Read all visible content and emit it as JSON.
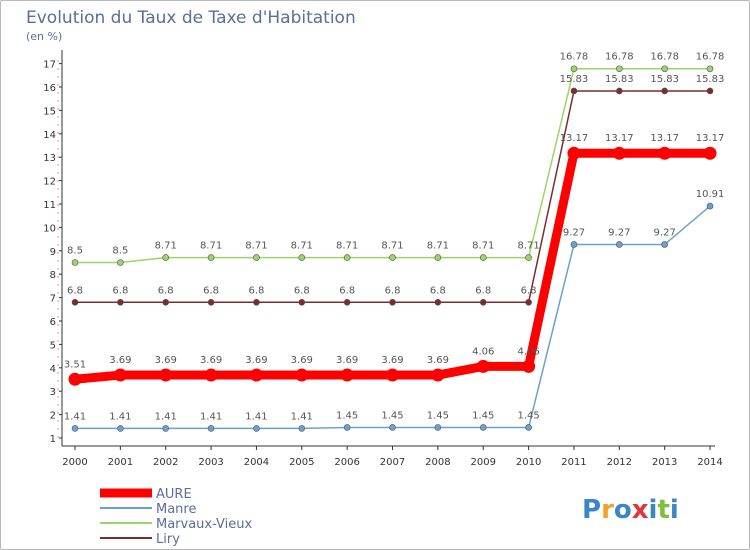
{
  "chart_data": {
    "type": "line",
    "title": "Evolution du Taux de Taxe d'Habitation",
    "subtitle": "(en %)",
    "x": [
      "2000",
      "2001",
      "2002",
      "2003",
      "2004",
      "2005",
      "2006",
      "2007",
      "2008",
      "2009",
      "2010",
      "2011",
      "2012",
      "2013",
      "2014"
    ],
    "ylim": [
      0,
      17
    ],
    "yticks": [
      "1",
      "2",
      "3",
      "4",
      "5",
      "6",
      "7",
      "8",
      "9",
      "10",
      "11",
      "12",
      "13",
      "14",
      "15",
      "16",
      "17"
    ],
    "grid": false,
    "legend_position": "bottom-left",
    "series": [
      {
        "name": "AURE",
        "color": "#ff0000",
        "values": [
          3.51,
          3.69,
          3.69,
          3.69,
          3.69,
          3.69,
          3.69,
          3.69,
          3.69,
          4.06,
          4.06,
          13.17,
          13.17,
          13.17,
          13.17
        ],
        "labels": [
          "3.51",
          "3.69",
          "3.69",
          "3.69",
          "3.69",
          "3.69",
          "3.69",
          "3.69",
          "3.69",
          "4.06",
          "4.06",
          "13.17",
          "13.17",
          "13.17",
          "13.17"
        ]
      },
      {
        "name": "Manre",
        "color": "#6aa2cf",
        "values": [
          1.41,
          1.41,
          1.41,
          1.41,
          1.41,
          1.41,
          1.45,
          1.45,
          1.45,
          1.45,
          1.45,
          9.27,
          9.27,
          9.27,
          10.91
        ],
        "labels": [
          "1.41",
          "1.41",
          "1.41",
          "1.41",
          "1.41",
          "1.41",
          "1.45",
          "1.45",
          "1.45",
          "1.45",
          "1.45",
          "9.27",
          "9.27",
          "9.27",
          "10.91"
        ]
      },
      {
        "name": "Marvaux-Vieux",
        "color": "#9ad56a",
        "values": [
          8.5,
          8.5,
          8.71,
          8.71,
          8.71,
          8.71,
          8.71,
          8.71,
          8.71,
          8.71,
          8.71,
          16.78,
          16.78,
          16.78,
          16.78
        ],
        "labels": [
          "8.5",
          "8.5",
          "8.71",
          "8.71",
          "8.71",
          "8.71",
          "8.71",
          "8.71",
          "8.71",
          "8.71",
          "8.71",
          "16.78",
          "16.78",
          "16.78",
          "16.78"
        ]
      },
      {
        "name": "Liry",
        "color": "#7b2c2c",
        "values": [
          6.8,
          6.8,
          6.8,
          6.8,
          6.8,
          6.8,
          6.8,
          6.8,
          6.8,
          6.8,
          6.8,
          15.83,
          15.83,
          15.83,
          15.83
        ],
        "labels": [
          "6.8",
          "6.8",
          "6.8",
          "6.8",
          "6.8",
          "6.8",
          "6.8",
          "6.8",
          "6.8",
          "6.8",
          "6.8",
          "15.83",
          "15.83",
          "15.83",
          "15.83"
        ]
      }
    ]
  },
  "logo": {
    "letters": [
      "P",
      "r",
      "o",
      "x",
      "i",
      "t",
      "i"
    ],
    "colors": [
      "#3b86c6",
      "#f2a12c",
      "#3b86c6",
      "#e2363c",
      "#3b86c6",
      "#7bbf3a",
      "#3b86c6"
    ]
  }
}
